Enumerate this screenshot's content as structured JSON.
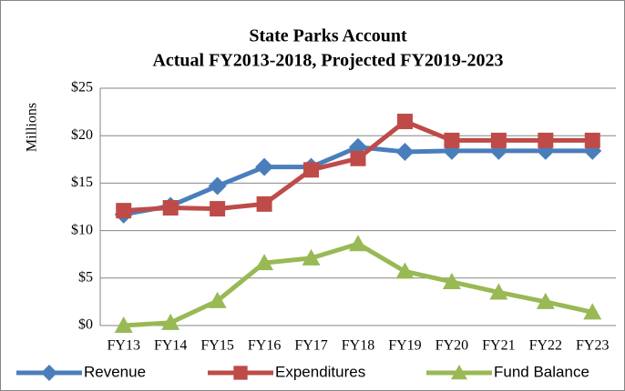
{
  "chart_data": {
    "type": "line",
    "title": [
      "State Parks Account",
      "Actual FY2013-2018, Projected FY2019-2023"
    ],
    "y_label": "Millions",
    "categories": [
      "FY13",
      "FY14",
      "FY15",
      "FY16",
      "FY17",
      "FY18",
      "FY19",
      "FY20",
      "FY21",
      "FY22",
      "FY23"
    ],
    "series": [
      {
        "name": "Revenue",
        "color": "#4a7ebb",
        "marker": "diamond",
        "values": [
          11.7,
          12.6,
          14.7,
          16.7,
          16.7,
          18.8,
          18.3,
          18.4,
          18.4,
          18.4,
          18.4
        ]
      },
      {
        "name": "Expenditures",
        "color": "#be4b48",
        "marker": "square",
        "values": [
          12.1,
          12.4,
          12.3,
          12.8,
          16.4,
          17.6,
          21.5,
          19.5,
          19.5,
          19.5,
          19.5
        ]
      },
      {
        "name": "Fund Balance",
        "color": "#98b954",
        "marker": "triangle",
        "values": [
          0,
          0.3,
          2.6,
          6.6,
          7.1,
          8.6,
          5.7,
          4.6,
          3.5,
          2.5,
          1.4
        ]
      }
    ],
    "ylim": [
      0,
      25
    ],
    "yticks": [
      {
        "value": 0,
        "label": "$0"
      },
      {
        "value": 5,
        "label": "$5"
      },
      {
        "value": 10,
        "label": "$10"
      },
      {
        "value": 15,
        "label": "$15"
      },
      {
        "value": 20,
        "label": "$20"
      },
      {
        "value": 25,
        "label": "$25"
      }
    ],
    "grid": true,
    "legend": "bottom"
  }
}
